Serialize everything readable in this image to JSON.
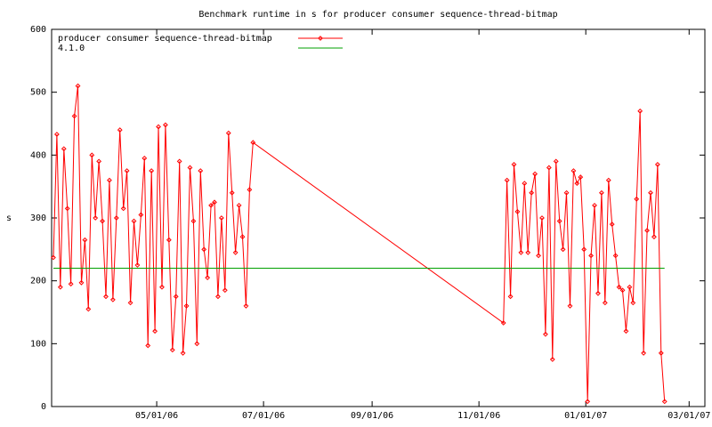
{
  "chart_data": {
    "type": "line",
    "title": "Benchmark runtime in s for producer consumer sequence-thread-bitmap",
    "ylabel": "s",
    "xlim": [
      "2006-03-02",
      "2007-03-10"
    ],
    "xticks": [
      {
        "value": "2006-05-01",
        "label": "05/01/06"
      },
      {
        "value": "2006-07-01",
        "label": "07/01/06"
      },
      {
        "value": "2006-09-01",
        "label": "09/01/06"
      },
      {
        "value": "2006-11-01",
        "label": "11/01/06"
      },
      {
        "value": "2007-01-01",
        "label": "01/01/07"
      },
      {
        "value": "2007-03-01",
        "label": "03/01/07"
      }
    ],
    "ylim": [
      0,
      600
    ],
    "yticks": [
      0,
      100,
      200,
      300,
      400,
      500,
      600
    ],
    "legend": "top-left",
    "x": [
      "2006-03-03",
      "2006-03-05",
      "2006-03-07",
      "2006-03-09",
      "2006-03-11",
      "2006-03-13",
      "2006-03-15",
      "2006-03-17",
      "2006-03-19",
      "2006-03-21",
      "2006-03-23",
      "2006-03-25",
      "2006-03-27",
      "2006-03-29",
      "2006-03-31",
      "2006-04-02",
      "2006-04-04",
      "2006-04-06",
      "2006-04-08",
      "2006-04-10",
      "2006-04-12",
      "2006-04-14",
      "2006-04-16",
      "2006-04-18",
      "2006-04-20",
      "2006-04-22",
      "2006-04-24",
      "2006-04-26",
      "2006-04-28",
      "2006-04-30",
      "2006-05-02",
      "2006-05-04",
      "2006-05-06",
      "2006-05-08",
      "2006-05-10",
      "2006-05-12",
      "2006-05-14",
      "2006-05-16",
      "2006-05-18",
      "2006-05-20",
      "2006-05-22",
      "2006-05-24",
      "2006-05-26",
      "2006-05-28",
      "2006-05-30",
      "2006-06-01",
      "2006-06-03",
      "2006-06-05",
      "2006-06-07",
      "2006-06-09",
      "2006-06-11",
      "2006-06-13",
      "2006-06-15",
      "2006-06-17",
      "2006-06-19",
      "2006-06-21",
      "2006-06-23",
      "2006-06-25",
      "2006-11-15",
      "2006-11-17",
      "2006-11-19",
      "2006-11-21",
      "2006-11-23",
      "2006-11-25",
      "2006-11-27",
      "2006-11-29",
      "2006-12-01",
      "2006-12-03",
      "2006-12-05",
      "2006-12-07",
      "2006-12-09",
      "2006-12-11",
      "2006-12-13",
      "2006-12-15",
      "2006-12-17",
      "2006-12-19",
      "2006-12-21",
      "2006-12-23",
      "2006-12-25",
      "2006-12-27",
      "2006-12-29",
      "2006-12-31",
      "2007-01-02",
      "2007-01-04",
      "2007-01-06",
      "2007-01-08",
      "2007-01-10",
      "2007-01-12",
      "2007-01-14",
      "2007-01-16",
      "2007-01-18",
      "2007-01-20",
      "2007-01-22",
      "2007-01-24",
      "2007-01-26",
      "2007-01-28",
      "2007-01-30",
      "2007-02-01",
      "2007-02-03",
      "2007-02-05",
      "2007-02-07",
      "2007-02-09",
      "2007-02-11",
      "2007-02-13",
      "2007-02-15"
    ],
    "series": [
      {
        "name": "producer consumer sequence-thread-bitmap",
        "color": "#ff0000",
        "values": [
          237,
          433,
          190,
          410,
          315,
          195,
          462,
          510,
          197,
          265,
          155,
          400,
          300,
          390,
          295,
          175,
          360,
          170,
          300,
          440,
          315,
          375,
          165,
          295,
          225,
          305,
          395,
          97,
          375,
          120,
          445,
          190,
          448,
          265,
          90,
          175,
          390,
          85,
          160,
          380,
          295,
          100,
          375,
          250,
          205,
          320,
          325,
          175,
          300,
          185,
          435,
          340,
          245,
          320,
          270,
          160,
          345,
          420,
          133,
          360,
          175,
          385,
          310,
          245,
          355,
          245,
          340,
          370,
          240,
          300,
          115,
          380,
          75,
          390,
          295,
          250,
          340,
          160,
          375,
          355,
          365,
          250,
          8,
          240,
          320,
          180,
          340,
          165,
          360,
          290,
          240,
          190,
          185,
          120,
          190,
          165,
          330,
          470,
          85,
          280,
          340,
          270,
          385,
          85,
          8
        ]
      },
      {
        "name": "4.1.0",
        "color": "#00a000",
        "x": [
          "2006-03-03",
          "2007-02-15"
        ],
        "values": [
          220,
          220
        ]
      }
    ]
  }
}
